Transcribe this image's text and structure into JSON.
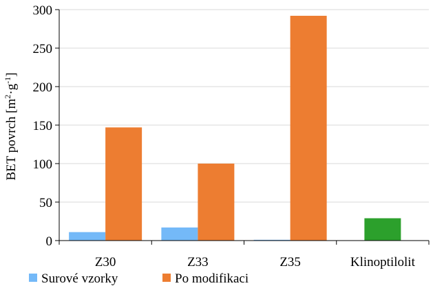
{
  "chart_data": {
    "type": "bar",
    "title": "",
    "xlabel": "",
    "ylabel": "BET povrch [m²·g⁻¹]",
    "ylabel_parts": {
      "base": "BET povrch [m",
      "sup1": "2",
      "mid": "·g",
      "sup2": "-1",
      "end": "]"
    },
    "ylim": [
      0,
      300
    ],
    "yticks": [
      0,
      50,
      100,
      150,
      200,
      250,
      300
    ],
    "grid": true,
    "legend_position": "bottom",
    "categories": [
      "Z30",
      "Z33",
      "Z35",
      "Klinoptilolit"
    ],
    "series": [
      {
        "name": "Surové vzorky",
        "color": "#74b9f8",
        "values": [
          11,
          17,
          1,
          null
        ]
      },
      {
        "name": "Po modifikaci",
        "color": "#ed7d31",
        "values": [
          147,
          100,
          292,
          null
        ]
      }
    ],
    "extra_bars": [
      {
        "category": "Klinoptilolit",
        "value": 29,
        "color": "#2ca02c"
      }
    ]
  }
}
